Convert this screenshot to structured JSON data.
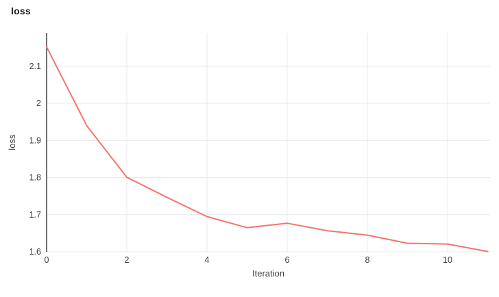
{
  "page": {
    "title": "loss"
  },
  "chart_data": {
    "type": "line",
    "title": "loss",
    "xlabel": "Iteration",
    "ylabel": "loss",
    "series": [
      {
        "name": "loss",
        "x": [
          0,
          1,
          2,
          3,
          4,
          5,
          6,
          7,
          8,
          9,
          10,
          11
        ],
        "y": [
          2.152,
          1.94,
          1.801,
          1.747,
          1.695,
          1.665,
          1.677,
          1.657,
          1.645,
          1.623,
          1.621,
          1.601
        ]
      }
    ],
    "xlim": [
      0,
      11.06
    ],
    "ylim": [
      1.6,
      2.19
    ],
    "x_ticks": [
      0,
      2,
      4,
      6,
      8,
      10
    ],
    "x_tick_labels": [
      "0",
      "2",
      "4",
      "6",
      "8",
      "10"
    ],
    "y_ticks": [
      1.6,
      1.7,
      1.8,
      1.9,
      2,
      2.1
    ],
    "y_tick_labels": [
      "1.6",
      "1.7",
      "1.8",
      "1.9",
      "2",
      "2.1"
    ],
    "grid": true,
    "legend": "none",
    "colors": {
      "line": "#f4756a",
      "grid": "#e8e8e8",
      "axis_line": "#333333",
      "tick_text": "#3b3b3b",
      "title_text": "#1a1a1a",
      "background": "#ffffff"
    }
  }
}
